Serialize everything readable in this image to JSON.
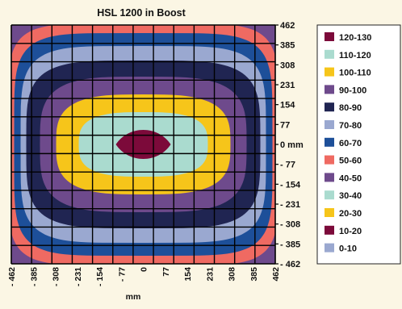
{
  "chart_data": {
    "type": "heatmap",
    "title": "HSL 1200 in Boost",
    "xlabel": "mm",
    "ylabel": "",
    "x_ticks": [
      "- 462",
      "- 385",
      "- 308",
      "- 231",
      "- 154",
      "- 77",
      "0",
      "77",
      "154",
      "231",
      "308",
      "385",
      "462"
    ],
    "y_ticks": [
      "462",
      "385",
      "308",
      "231",
      "154",
      "77",
      "0 mm",
      "- 77",
      "- 154",
      "- 231",
      "- 308",
      "- 385",
      "- 462"
    ],
    "xlim": [
      -462,
      462
    ],
    "ylim": [
      -462,
      462
    ],
    "grid": true,
    "legend_position": "right",
    "contour_levels": [
      {
        "name": "120-130",
        "color": "#7c0a3a"
      },
      {
        "name": "110-120",
        "color": "#aadbcf"
      },
      {
        "name": "100-110",
        "color": "#f6c51a"
      },
      {
        "name": "90-100",
        "color": "#6e4a8c"
      },
      {
        "name": "80-90",
        "color": "#202552"
      },
      {
        "name": "70-80",
        "color": "#9aa8d0"
      },
      {
        "name": "60-70",
        "color": "#1d4f99"
      },
      {
        "name": "50-60",
        "color": "#ef6a62"
      },
      {
        "name": "40-50",
        "color": "#6e4a8c"
      },
      {
        "name": "30-40",
        "color": "#aadbcf"
      },
      {
        "name": "20-30",
        "color": "#f6c51a"
      },
      {
        "name": "10-20",
        "color": "#7c0a3a"
      },
      {
        "name": "0-10",
        "color": "#9aa8d0"
      }
    ]
  }
}
